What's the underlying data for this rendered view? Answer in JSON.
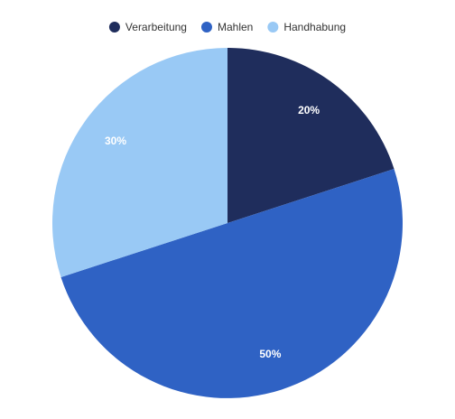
{
  "chart_data": {
    "type": "pie",
    "categories": [
      "Verarbeitung",
      "Mahlen",
      "Handhabung"
    ],
    "values": [
      20,
      50,
      30
    ],
    "value_labels": [
      "20%",
      "50%",
      "30%"
    ],
    "colors": [
      "#1f2d5c",
      "#2f62c4",
      "#99c9f5"
    ],
    "legend": "top"
  }
}
